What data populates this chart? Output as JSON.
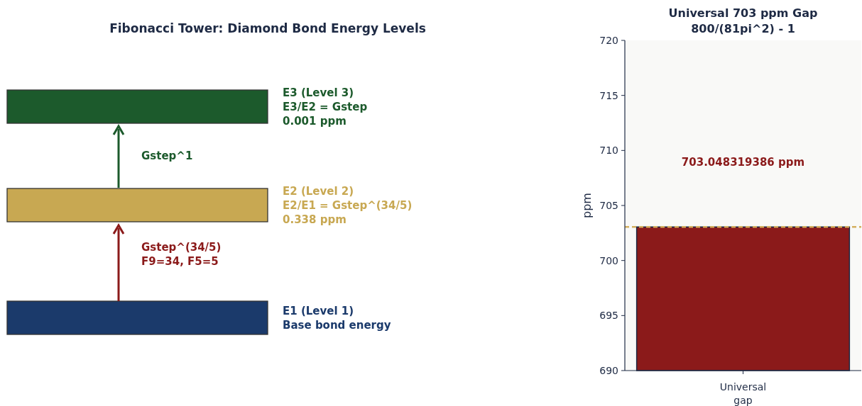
{
  "chart_data": [
    {
      "type": "other",
      "title": "Fibonacci Tower: Diamond Bond Energy Levels",
      "annotations": [
        "E3 (Level 3)\nE3/E2 = Gstep\n0.001 ppm",
        "Gstep^1",
        "E2 (Level 2)\nE2/E1 = Gstep^(34/5)\n0.338 ppm",
        "Gstep^(34/5)\nF9=34, F5=5",
        "E1 (Level 1)\nBase bond energy"
      ],
      "colors": [
        "#1c5a2c",
        "#1c5a2c",
        "#c8a852",
        "#8b1a1a",
        "#1b3a6b"
      ]
    },
    {
      "type": "bar",
      "title": "Universal 703 ppm Gap\n800/(81pi^2) - 1",
      "ylabel": "ppm",
      "categories": [
        "Universal gap"
      ],
      "values": [
        703.05
      ],
      "color": "#8b1a1a",
      "annotations": [
        "703.048319386 ppm"
      ],
      "ylim": [
        690,
        720
      ],
      "yticks": [
        690,
        695,
        700,
        705,
        710,
        715,
        720
      ],
      "ref_lines": [
        {
          "axis": "y",
          "value": 703.05,
          "color": "#d4b060",
          "line_style": "dashed"
        }
      ]
    }
  ]
}
